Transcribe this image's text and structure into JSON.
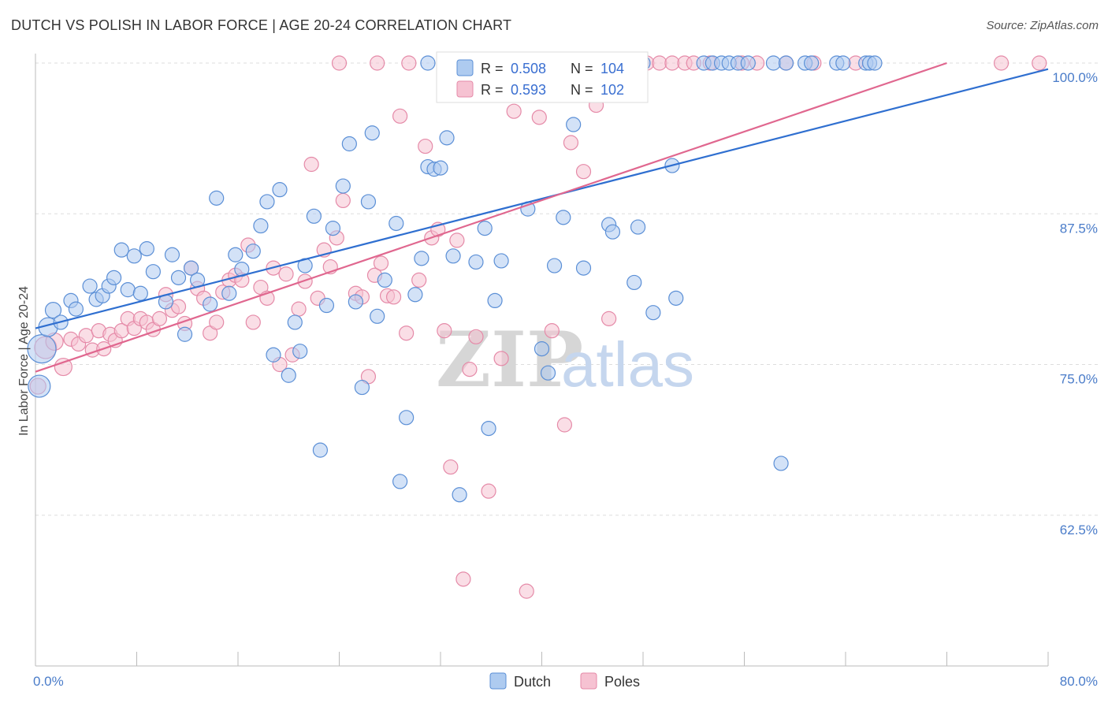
{
  "title": "DUTCH VS POLISH IN LABOR FORCE | AGE 20-24 CORRELATION CHART",
  "source": "Source: ZipAtlas.com",
  "watermark": {
    "zip": "ZIP",
    "atlas": "atlas"
  },
  "colors": {
    "dutch_fill": "#aecbf0",
    "dutch_stroke": "#5b8fd6",
    "dutch_line": "#2f6fd0",
    "poles_fill": "#f6c2d2",
    "poles_stroke": "#e58aa8",
    "poles_line": "#e0678f",
    "grid": "#dddddd",
    "tick_label": "#4a7cc9"
  },
  "legend_box": {
    "rows": [
      {
        "r_label": "R = ",
        "r_value": "0.508",
        "n_label": "N = ",
        "n_value": "104"
      },
      {
        "r_label": "R = ",
        "r_value": "0.593",
        "n_label": "N = ",
        "n_value": "102"
      }
    ]
  },
  "bottom_legend": [
    "Dutch",
    "Poles"
  ],
  "chart_data": {
    "type": "scatter",
    "title": "DUTCH VS POLISH IN LABOR FORCE | AGE 20-24 CORRELATION CHART",
    "xlabel": "",
    "ylabel": "In Labor Force | Age 20-24",
    "xlim": [
      0,
      80
    ],
    "ylim": [
      50,
      100
    ],
    "x_tick_labels": [
      "0.0%",
      "80.0%"
    ],
    "y_ticks": [
      62.5,
      75.0,
      87.5,
      100.0
    ],
    "y_tick_labels": [
      "62.5%",
      "75.0%",
      "87.5%",
      "100.0%"
    ],
    "grid": "horizontal dashed",
    "legend_placement": "top-center",
    "series": [
      {
        "name": "Dutch",
        "r": 0.508,
        "n": 104,
        "trend": [
          [
            0,
            78.0
          ],
          [
            80,
            99.5
          ]
        ],
        "points": [
          [
            0.3,
            73.2,
            14
          ],
          [
            0.5,
            76.3,
            18
          ],
          [
            1.0,
            78.1,
            12
          ],
          [
            1.4,
            79.5,
            10
          ],
          [
            2.0,
            78.5,
            9
          ],
          [
            2.8,
            80.3,
            9
          ],
          [
            3.2,
            79.6,
            9
          ],
          [
            4.3,
            81.5,
            9
          ],
          [
            4.8,
            80.4,
            9
          ],
          [
            5.3,
            80.7,
            9
          ],
          [
            5.8,
            81.5,
            9
          ],
          [
            6.2,
            82.2,
            9
          ],
          [
            6.8,
            84.5,
            9
          ],
          [
            7.3,
            81.2,
            9
          ],
          [
            7.8,
            84.0,
            9
          ],
          [
            8.3,
            80.9,
            9
          ],
          [
            8.8,
            84.6,
            9
          ],
          [
            9.3,
            82.7,
            9
          ],
          [
            10.3,
            80.2,
            9
          ],
          [
            10.8,
            84.1,
            9
          ],
          [
            11.3,
            82.2,
            9
          ],
          [
            11.8,
            77.5,
            9
          ],
          [
            12.3,
            83.0,
            9
          ],
          [
            12.8,
            82.0,
            9
          ],
          [
            13.8,
            80.0,
            9
          ],
          [
            14.3,
            88.8,
            9
          ],
          [
            15.3,
            80.9,
            9
          ],
          [
            15.8,
            84.1,
            9
          ],
          [
            16.3,
            82.9,
            9
          ],
          [
            17.2,
            84.4,
            9
          ],
          [
            17.8,
            86.5,
            9
          ],
          [
            18.3,
            88.5,
            9
          ],
          [
            18.8,
            75.8,
            9
          ],
          [
            19.3,
            89.5,
            9
          ],
          [
            20.0,
            74.1,
            9
          ],
          [
            20.5,
            78.5,
            9
          ],
          [
            20.9,
            76.1,
            9
          ],
          [
            21.3,
            83.2,
            9
          ],
          [
            22.0,
            87.3,
            9
          ],
          [
            22.5,
            67.9,
            9
          ],
          [
            23.0,
            79.9,
            9
          ],
          [
            23.5,
            86.3,
            9
          ],
          [
            24.3,
            89.8,
            9
          ],
          [
            24.8,
            93.3,
            9
          ],
          [
            25.3,
            80.2,
            9
          ],
          [
            25.8,
            73.1,
            9
          ],
          [
            26.3,
            88.5,
            9
          ],
          [
            26.6,
            94.2,
            9
          ],
          [
            27.0,
            79.0,
            9
          ],
          [
            27.6,
            82.0,
            9
          ],
          [
            28.5,
            86.7,
            9
          ],
          [
            28.8,
            65.3,
            9
          ],
          [
            29.3,
            70.6,
            9
          ],
          [
            30.0,
            80.8,
            9
          ],
          [
            30.5,
            83.8,
            9
          ],
          [
            31.0,
            91.4,
            9
          ],
          [
            31.5,
            91.2,
            9
          ],
          [
            32.0,
            91.3,
            9
          ],
          [
            32.5,
            93.8,
            9
          ],
          [
            33.0,
            84.0,
            9
          ],
          [
            33.5,
            64.2,
            9
          ],
          [
            34.8,
            83.5,
            9
          ],
          [
            35.5,
            86.3,
            9
          ],
          [
            35.8,
            69.7,
            9
          ],
          [
            36.3,
            80.3,
            9
          ],
          [
            36.8,
            83.6,
            9
          ],
          [
            38.9,
            87.9,
            9
          ],
          [
            40.0,
            76.3,
            9
          ],
          [
            40.5,
            74.3,
            9
          ],
          [
            41.0,
            83.2,
            9
          ],
          [
            41.7,
            87.2,
            9
          ],
          [
            42.5,
            94.9,
            9
          ],
          [
            43.3,
            83.0,
            9
          ],
          [
            45.3,
            86.6,
            9
          ],
          [
            45.6,
            86.0,
            9
          ],
          [
            47.3,
            81.8,
            9
          ],
          [
            47.6,
            86.4,
            9
          ],
          [
            48.8,
            79.3,
            9
          ],
          [
            50.3,
            91.5,
            9
          ],
          [
            50.6,
            80.5,
            9
          ],
          [
            52.8,
            100.0,
            9
          ],
          [
            53.5,
            100.0,
            9
          ],
          [
            54.2,
            100.0,
            9
          ],
          [
            54.8,
            100.0,
            9
          ],
          [
            55.5,
            100.0,
            9
          ],
          [
            56.3,
            100.0,
            9
          ],
          [
            58.3,
            100.0,
            9
          ],
          [
            59.3,
            100.0,
            9
          ],
          [
            60.8,
            100.0,
            9
          ],
          [
            61.3,
            100.0,
            9
          ],
          [
            63.3,
            100.0,
            9
          ],
          [
            63.8,
            100.0,
            9
          ],
          [
            65.6,
            100.0,
            9
          ],
          [
            65.9,
            100.0,
            9
          ],
          [
            66.3,
            100.0,
            9
          ],
          [
            31.0,
            100.0,
            9
          ],
          [
            33.5,
            100.0,
            9
          ],
          [
            48.0,
            100.0,
            9
          ],
          [
            58.9,
            66.8,
            9
          ],
          [
            37.3,
            100.0,
            9
          ],
          [
            38.3,
            100.0,
            9
          ],
          [
            40.8,
            100.0,
            9
          ],
          [
            43.8,
            100.0,
            9
          ],
          [
            46.8,
            100.0,
            9
          ]
        ]
      },
      {
        "name": "Poles",
        "r": 0.593,
        "n": 102,
        "trend": [
          [
            0,
            74.4
          ],
          [
            72,
            100.0
          ]
        ],
        "points": [
          [
            0.2,
            73.2,
            10
          ],
          [
            0.8,
            76.4,
            14
          ],
          [
            1.5,
            76.9,
            11
          ],
          [
            2.2,
            74.8,
            11
          ],
          [
            2.8,
            77.1,
            9
          ],
          [
            3.4,
            76.7,
            9
          ],
          [
            4.0,
            77.4,
            9
          ],
          [
            4.5,
            76.2,
            9
          ],
          [
            5.0,
            77.8,
            9
          ],
          [
            5.4,
            76.3,
            9
          ],
          [
            5.9,
            77.5,
            9
          ],
          [
            6.3,
            77.0,
            9
          ],
          [
            6.8,
            77.8,
            9
          ],
          [
            7.3,
            78.8,
            9
          ],
          [
            7.8,
            78.0,
            9
          ],
          [
            8.3,
            78.8,
            9
          ],
          [
            8.8,
            78.5,
            9
          ],
          [
            9.3,
            77.9,
            9
          ],
          [
            9.8,
            78.8,
            9
          ],
          [
            10.3,
            80.8,
            9
          ],
          [
            10.8,
            79.5,
            9
          ],
          [
            11.3,
            79.8,
            9
          ],
          [
            11.8,
            78.4,
            9
          ],
          [
            12.3,
            83.0,
            9
          ],
          [
            12.8,
            81.3,
            9
          ],
          [
            13.3,
            80.5,
            9
          ],
          [
            13.8,
            77.6,
            9
          ],
          [
            14.3,
            78.5,
            9
          ],
          [
            14.8,
            81.0,
            9
          ],
          [
            15.3,
            82.0,
            9
          ],
          [
            15.8,
            82.4,
            9
          ],
          [
            16.3,
            82.0,
            9
          ],
          [
            16.8,
            84.9,
            9
          ],
          [
            17.2,
            78.5,
            9
          ],
          [
            17.8,
            81.4,
            9
          ],
          [
            18.3,
            80.5,
            9
          ],
          [
            18.8,
            83.0,
            9
          ],
          [
            19.3,
            75.0,
            9
          ],
          [
            19.8,
            82.5,
            9
          ],
          [
            20.3,
            75.8,
            9
          ],
          [
            20.8,
            79.6,
            9
          ],
          [
            21.3,
            81.9,
            9
          ],
          [
            21.8,
            91.6,
            9
          ],
          [
            22.3,
            80.5,
            9
          ],
          [
            22.8,
            84.5,
            9
          ],
          [
            23.3,
            83.1,
            9
          ],
          [
            23.8,
            85.5,
            9
          ],
          [
            24.3,
            88.6,
            9
          ],
          [
            25.3,
            80.9,
            9
          ],
          [
            25.8,
            80.6,
            9
          ],
          [
            26.3,
            74.0,
            9
          ],
          [
            26.8,
            82.4,
            9
          ],
          [
            27.3,
            83.4,
            9
          ],
          [
            27.8,
            80.7,
            9
          ],
          [
            28.3,
            80.6,
            9
          ],
          [
            28.8,
            95.6,
            9
          ],
          [
            29.3,
            77.6,
            9
          ],
          [
            30.3,
            82.0,
            9
          ],
          [
            30.8,
            93.1,
            9
          ],
          [
            31.3,
            85.5,
            9
          ],
          [
            31.8,
            86.2,
            9
          ],
          [
            32.3,
            77.8,
            9
          ],
          [
            32.8,
            66.5,
            9
          ],
          [
            33.3,
            85.3,
            9
          ],
          [
            33.8,
            57.2,
            9
          ],
          [
            34.3,
            74.6,
            9
          ],
          [
            34.8,
            77.3,
            9
          ],
          [
            35.8,
            64.5,
            9
          ],
          [
            36.8,
            75.5,
            9
          ],
          [
            37.8,
            96.0,
            9
          ],
          [
            38.8,
            56.2,
            9
          ],
          [
            39.8,
            95.5,
            9
          ],
          [
            40.8,
            77.8,
            9
          ],
          [
            41.8,
            70.0,
            9
          ],
          [
            42.3,
            93.4,
            9
          ],
          [
            43.3,
            91.0,
            9
          ],
          [
            44.3,
            96.5,
            9
          ],
          [
            45.3,
            78.8,
            9
          ],
          [
            46.3,
            100.0,
            9
          ],
          [
            47.3,
            100.0,
            9
          ],
          [
            48.3,
            100.0,
            9
          ],
          [
            49.3,
            100.0,
            9
          ],
          [
            50.3,
            100.0,
            9
          ],
          [
            51.3,
            100.0,
            9
          ],
          [
            53.3,
            100.0,
            9
          ],
          [
            55.8,
            100.0,
            9
          ],
          [
            59.3,
            100.0,
            9
          ],
          [
            64.8,
            100.0,
            9
          ],
          [
            76.3,
            100.0,
            9
          ],
          [
            79.3,
            100.0,
            9
          ],
          [
            24.0,
            100.0,
            9
          ],
          [
            27.0,
            100.0,
            9
          ],
          [
            29.5,
            100.0,
            9
          ],
          [
            33.5,
            100.0,
            9
          ],
          [
            35.5,
            100.0,
            9
          ],
          [
            38.0,
            100.0,
            9
          ],
          [
            41.5,
            100.0,
            9
          ],
          [
            44.0,
            100.0,
            9
          ],
          [
            46.9,
            100.0,
            9
          ],
          [
            52.0,
            100.0,
            9
          ],
          [
            57.0,
            100.0,
            9
          ],
          [
            61.5,
            100.0,
            9
          ]
        ]
      }
    ]
  }
}
